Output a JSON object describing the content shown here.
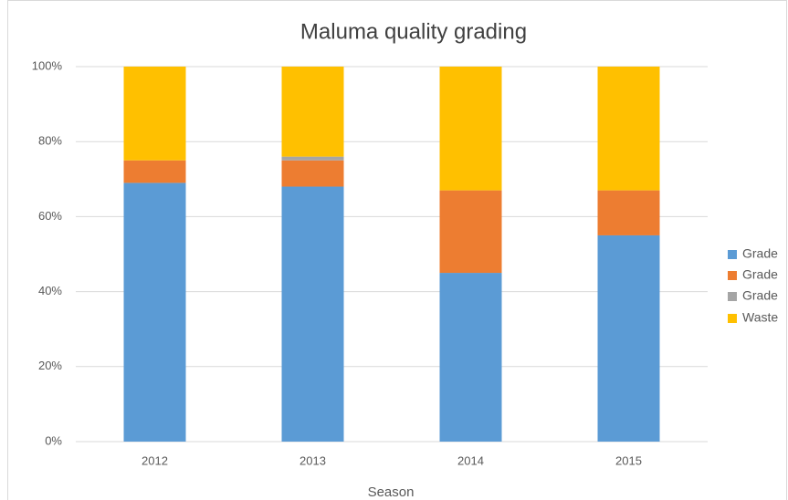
{
  "chart_data": {
    "type": "stacked_bar",
    "title": "Maluma quality grading",
    "x_label": "Season",
    "categories": [
      "2012",
      "2013",
      "2014",
      "2015"
    ],
    "series": [
      {
        "name": "Grade",
        "color": "#5b9bd5",
        "values": [
          69,
          68,
          45,
          55
        ]
      },
      {
        "name": "Grade",
        "color": "#ed7d31",
        "values": [
          6,
          7,
          22,
          12
        ]
      },
      {
        "name": "Grade",
        "color": "#a5a5a5",
        "values": [
          0,
          1,
          0,
          0
        ]
      },
      {
        "name": "Waste",
        "color": "#ffc000",
        "values": [
          25,
          24,
          33,
          33
        ]
      }
    ],
    "ylim": [
      0,
      100
    ],
    "yticks": [
      {
        "value": 0,
        "label": "0%"
      },
      {
        "value": 20,
        "label": "20%"
      },
      {
        "value": 40,
        "label": "40%"
      },
      {
        "value": 60,
        "label": "60%"
      },
      {
        "value": 80,
        "label": "80%"
      },
      {
        "value": 100,
        "label": "100%"
      }
    ],
    "grid": true,
    "legend": "right"
  }
}
